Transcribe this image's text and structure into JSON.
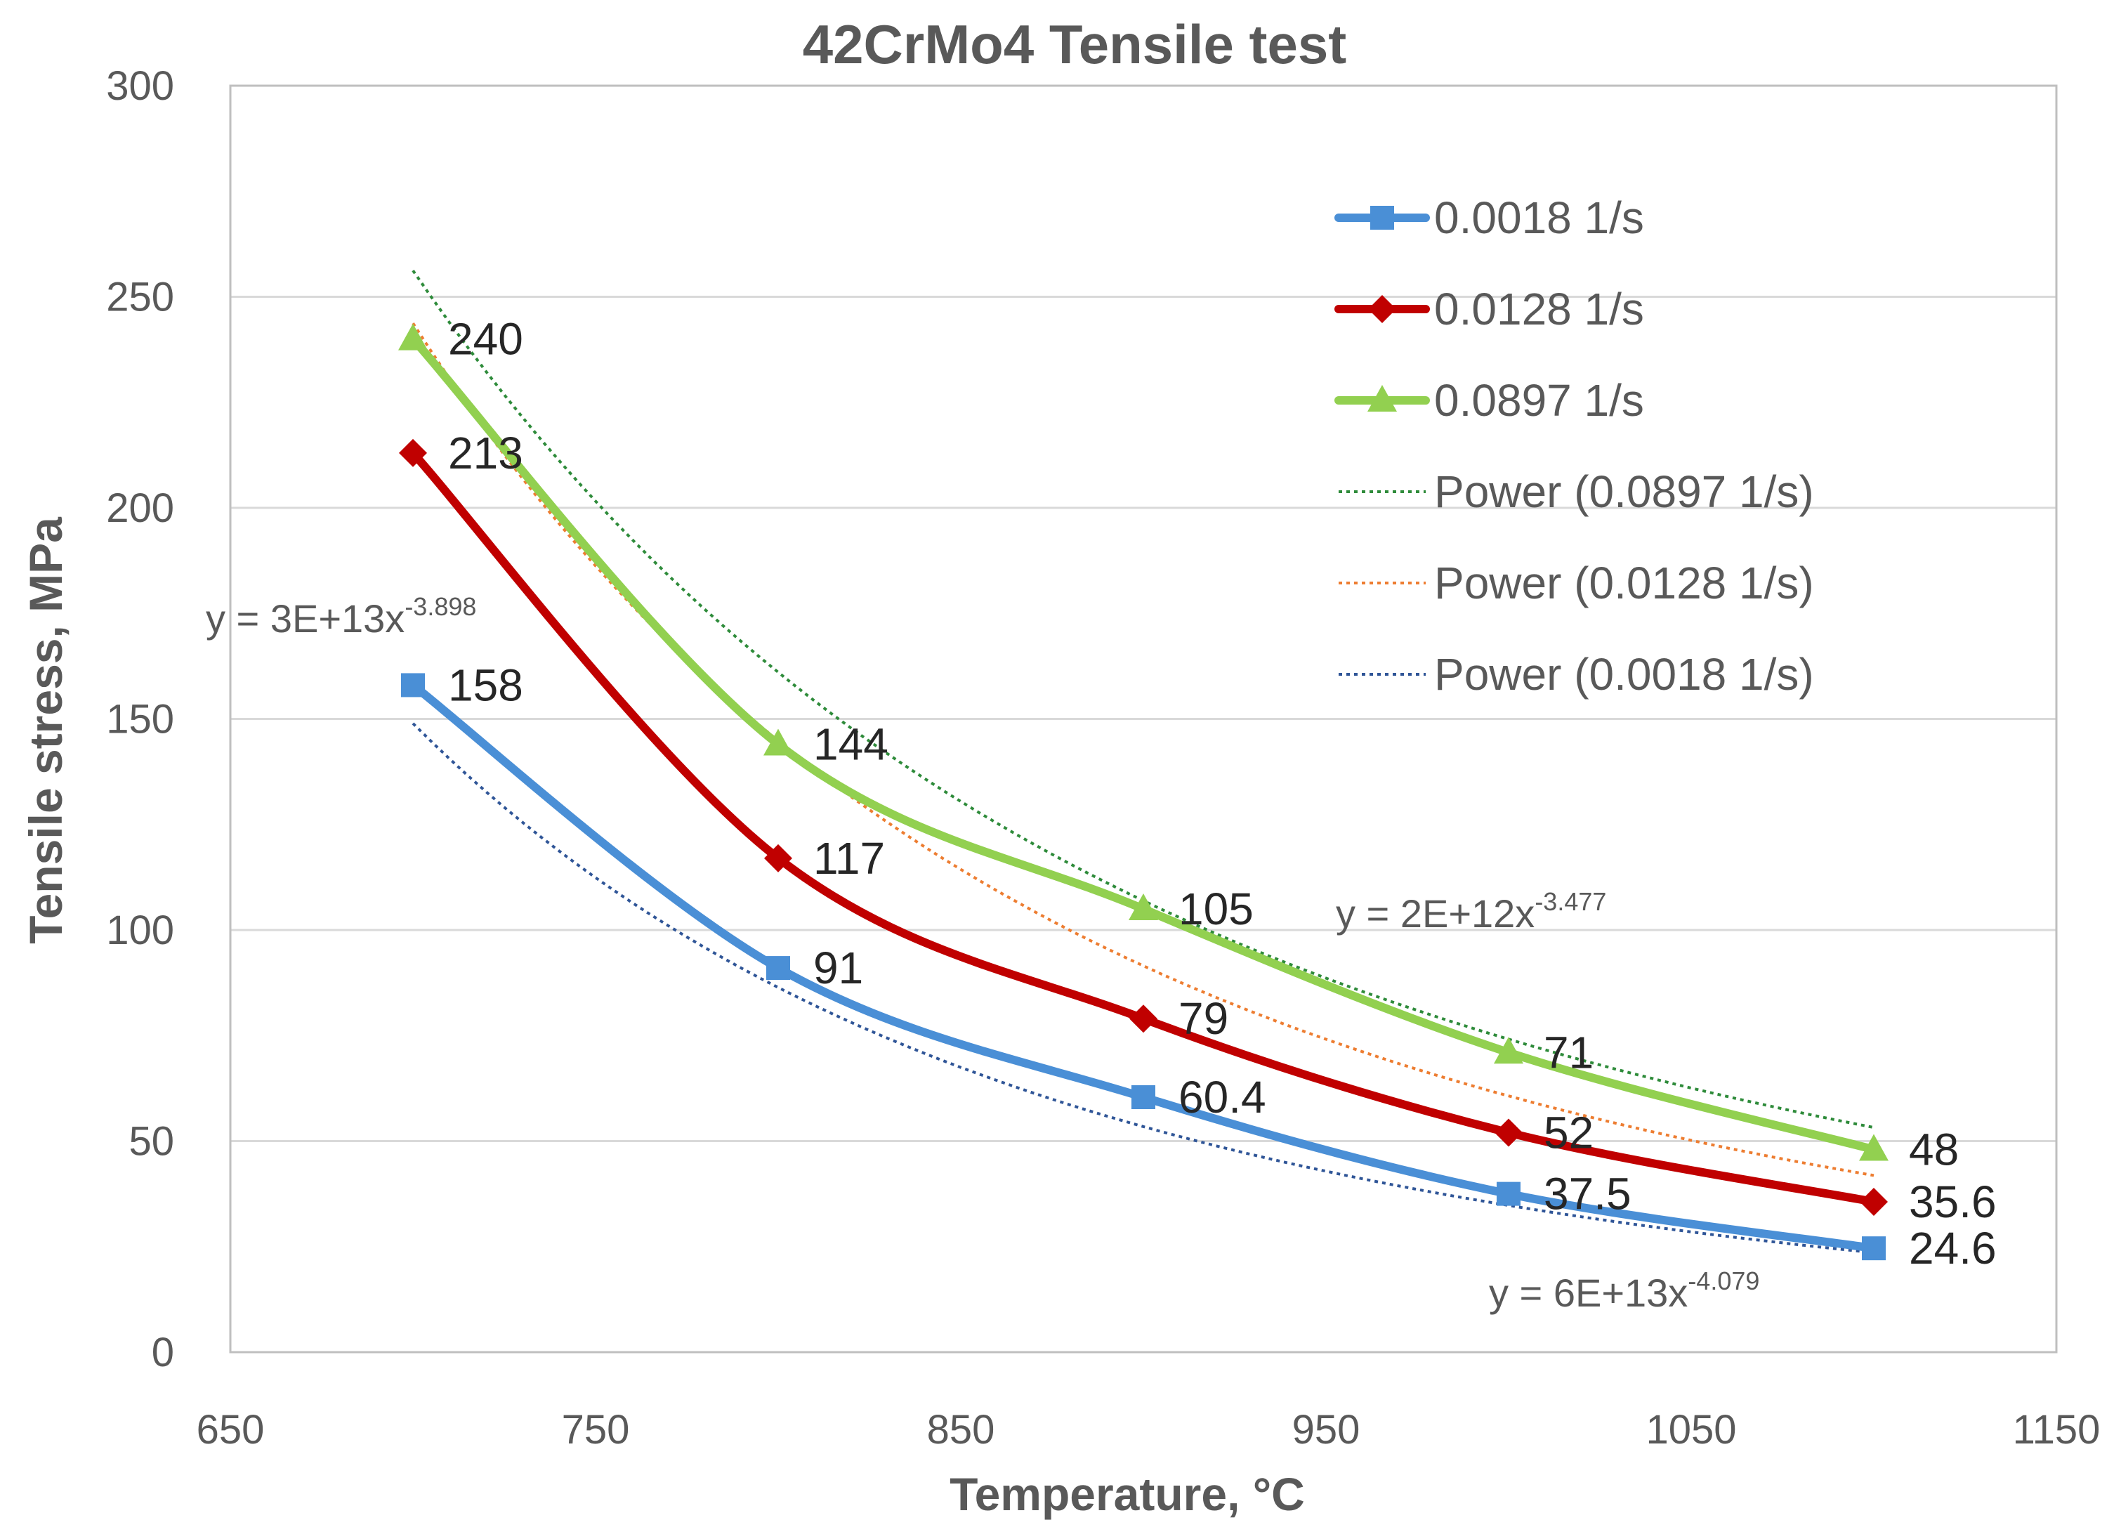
{
  "chart_data": {
    "type": "line",
    "title": "42CrMo4 Tensile test",
    "xlabel": "Temperature, °C",
    "ylabel": "Tensile stress, MPa",
    "xlim": [
      650,
      1150
    ],
    "ylim": [
      0,
      300
    ],
    "xticks": [
      650,
      750,
      850,
      950,
      1050,
      1150
    ],
    "yticks": [
      0,
      50,
      100,
      150,
      200,
      250,
      300
    ],
    "grid": true,
    "legend_position": "top-right",
    "x": [
      700,
      800,
      900,
      1000,
      1100
    ],
    "series": [
      {
        "name": "0.0018 1/s",
        "values": [
          158,
          91,
          60.4,
          37.5,
          24.6
        ],
        "labels": [
          "158",
          "91",
          "60.4",
          "37.5",
          "24.6"
        ],
        "color": "#4a8fd6",
        "marker": "square"
      },
      {
        "name": "0.0128 1/s",
        "values": [
          213,
          117,
          79,
          52,
          35.6
        ],
        "labels": [
          "213",
          "117",
          "79",
          "52",
          "35.6"
        ],
        "color": "#c00000",
        "marker": "diamond"
      },
      {
        "name": "0.0897 1/s",
        "values": [
          240,
          144,
          105,
          71,
          48
        ],
        "labels": [
          "240",
          "144",
          "105",
          "71",
          "48"
        ],
        "color": "#92d050",
        "marker": "triangle"
      }
    ],
    "trendlines": [
      {
        "name": "Power (0.0897 1/s)",
        "type": "power",
        "a": 2000000000000.0,
        "b": -3.477,
        "color": "#2e8b3a",
        "equation_base": "y = 2E+12x",
        "equation_exp": "-3.477"
      },
      {
        "name": "Power (0.0128 1/s)",
        "type": "power",
        "a": 30000000000000.0,
        "b": -3.898,
        "color": "#ed7d31",
        "equation_base": "y = 3E+13x",
        "equation_exp": "-3.898"
      },
      {
        "name": "Power (0.0018 1/s)",
        "type": "power",
        "a": 60000000000000.0,
        "b": -4.079,
        "color": "#2f5597",
        "equation_base": "y = 6E+13x",
        "equation_exp": "-4.079"
      }
    ]
  }
}
